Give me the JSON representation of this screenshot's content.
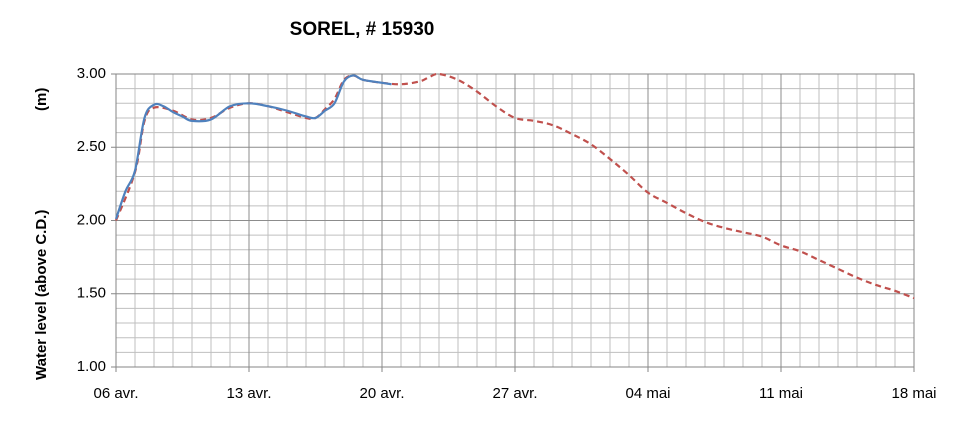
{
  "chart_data": {
    "type": "line",
    "title": "SOREL, # 15930",
    "y_label": "Water level (above C.D.)",
    "y_unit": "(m)",
    "xlim": [
      0,
      42
    ],
    "xticks": [
      {
        "value": 0,
        "label": "06 avr."
      },
      {
        "value": 7,
        "label": "13 avr."
      },
      {
        "value": 14,
        "label": "20 avr."
      },
      {
        "value": 21,
        "label": "27 avr."
      },
      {
        "value": 28,
        "label": "04 mai"
      },
      {
        "value": 35,
        "label": "11 mai"
      },
      {
        "value": 42,
        "label": "18 mai"
      }
    ],
    "ylim": [
      1,
      3
    ],
    "yticks": [
      {
        "value": 1,
        "label": "1.00"
      },
      {
        "value": 1.5,
        "label": "1.50"
      },
      {
        "value": 2,
        "label": "2.00"
      },
      {
        "value": 2.5,
        "label": "2.50"
      },
      {
        "value": 3,
        "label": "3.00"
      }
    ],
    "grid": true,
    "series": [
      {
        "color": "#c0504d",
        "dash": true,
        "x": [
          0,
          1,
          1.5,
          2,
          3,
          4,
          5,
          6,
          7,
          8,
          9,
          10,
          10.5,
          11,
          11.5,
          12,
          12.5,
          13,
          14,
          15,
          16,
          16.5,
          17,
          18,
          19,
          20,
          21,
          22,
          23,
          24,
          25,
          26,
          27,
          28,
          29,
          30,
          31,
          32,
          33,
          34,
          35,
          36,
          37,
          38,
          39,
          40,
          41,
          42
        ],
        "values": [
          2.0,
          2.33,
          2.68,
          2.77,
          2.75,
          2.69,
          2.7,
          2.77,
          2.8,
          2.78,
          2.74,
          2.7,
          2.7,
          2.76,
          2.83,
          2.96,
          2.99,
          2.96,
          2.94,
          2.93,
          2.95,
          2.98,
          3.0,
          2.96,
          2.88,
          2.78,
          2.7,
          2.68,
          2.65,
          2.59,
          2.52,
          2.42,
          2.31,
          2.19,
          2.12,
          2.05,
          1.99,
          1.95,
          1.92,
          1.89,
          1.83,
          1.79,
          1.73,
          1.67,
          1.61,
          1.56,
          1.52,
          1.47
        ]
      },
      {
        "color": "#4f81bd",
        "dash": false,
        "x": [
          0,
          0.5,
          1,
          1.5,
          2,
          2.5,
          3,
          3.5,
          4,
          5,
          6,
          7,
          8,
          9,
          10,
          10.5,
          11,
          11.5,
          12,
          12.5,
          13,
          14,
          14.5
        ],
        "values": [
          2.01,
          2.2,
          2.34,
          2.7,
          2.79,
          2.78,
          2.74,
          2.71,
          2.68,
          2.69,
          2.78,
          2.8,
          2.78,
          2.75,
          2.71,
          2.7,
          2.75,
          2.8,
          2.95,
          2.99,
          2.96,
          2.94,
          2.93
        ]
      }
    ]
  }
}
